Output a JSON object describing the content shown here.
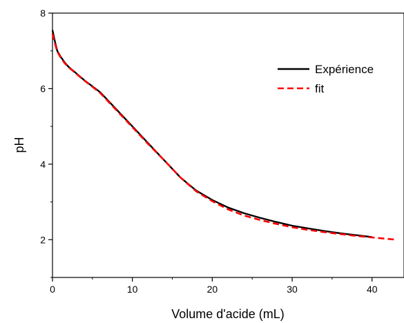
{
  "chart_data": {
    "type": "line",
    "title": "",
    "xlabel": "Volume d'acide (mL)",
    "ylabel": "pH",
    "xlim": [
      0,
      44
    ],
    "ylim": [
      1,
      8
    ],
    "xticks": [
      0,
      10,
      20,
      30,
      40
    ],
    "yticks": [
      2,
      4,
      6,
      8
    ],
    "grid": false,
    "legend_position": "top-right",
    "series": [
      {
        "name": "Expérience",
        "color": "#000000",
        "dash": "solid",
        "x": [
          0,
          0.3,
          0.6,
          1,
          1.5,
          2,
          3,
          4,
          5,
          6,
          8,
          10,
          12,
          14,
          16,
          18,
          20,
          22,
          24,
          26,
          28,
          30,
          32,
          34,
          36,
          38,
          40
        ],
        "y": [
          7.55,
          7.25,
          7.0,
          6.85,
          6.7,
          6.58,
          6.4,
          6.22,
          6.06,
          5.9,
          5.45,
          5.0,
          4.55,
          4.1,
          3.65,
          3.3,
          3.05,
          2.85,
          2.7,
          2.58,
          2.47,
          2.37,
          2.3,
          2.23,
          2.17,
          2.12,
          2.07
        ]
      },
      {
        "name": "fit",
        "color": "#ff0000",
        "dash": "dashed",
        "x": [
          0,
          0.3,
          0.6,
          1,
          1.5,
          2,
          3,
          4,
          5,
          6,
          8,
          10,
          12,
          14,
          16,
          18,
          20,
          22,
          24,
          26,
          28,
          30,
          32,
          34,
          36,
          38,
          40,
          42,
          43
        ],
        "y": [
          7.45,
          7.2,
          6.98,
          6.83,
          6.68,
          6.57,
          6.39,
          6.21,
          6.05,
          5.88,
          5.43,
          4.98,
          4.53,
          4.1,
          3.65,
          3.28,
          3.02,
          2.8,
          2.64,
          2.52,
          2.42,
          2.33,
          2.26,
          2.2,
          2.15,
          2.1,
          2.06,
          2.02,
          2.0
        ]
      }
    ]
  }
}
